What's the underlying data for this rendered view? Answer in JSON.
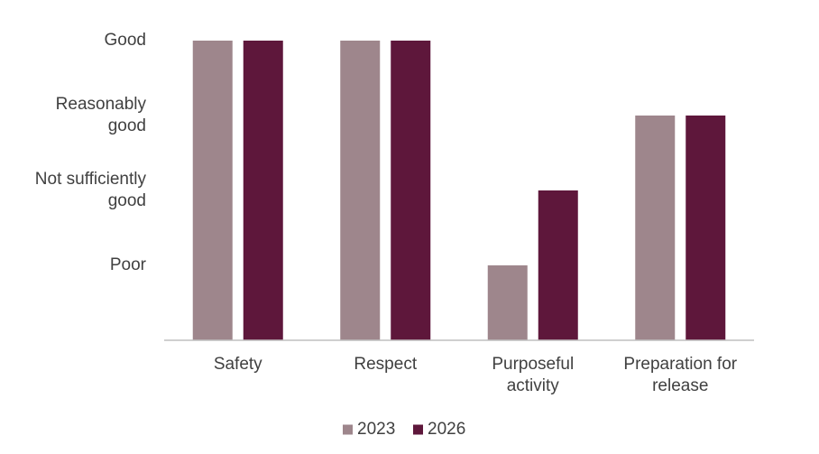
{
  "chart_data": {
    "type": "bar",
    "title": "",
    "xlabel": "",
    "ylabel": "",
    "y_categories": [
      {
        "value": 4,
        "lines": [
          "Good"
        ]
      },
      {
        "value": 3,
        "lines": [
          "Reasonably",
          "good"
        ]
      },
      {
        "value": 2,
        "lines": [
          "Not sufficiently",
          "good"
        ]
      },
      {
        "value": 1,
        "lines": [
          "Poor"
        ]
      }
    ],
    "ylim": [
      0,
      4
    ],
    "categories": [
      {
        "name": "Safety",
        "lines": [
          "Safety"
        ]
      },
      {
        "name": "Respect",
        "lines": [
          "Respect"
        ]
      },
      {
        "name": "Purposeful activity",
        "lines": [
          "Purposeful",
          "activity"
        ]
      },
      {
        "name": "Preparation for release",
        "lines": [
          "Preparation for",
          "release"
        ]
      }
    ],
    "series": [
      {
        "name": "2023",
        "color": "#9E868C",
        "values": [
          4,
          4,
          1,
          3
        ]
      },
      {
        "name": "2026",
        "color": "#5E173B",
        "values": [
          4,
          4,
          2,
          3
        ]
      }
    ],
    "grid": false,
    "legend_position": "bottom"
  }
}
